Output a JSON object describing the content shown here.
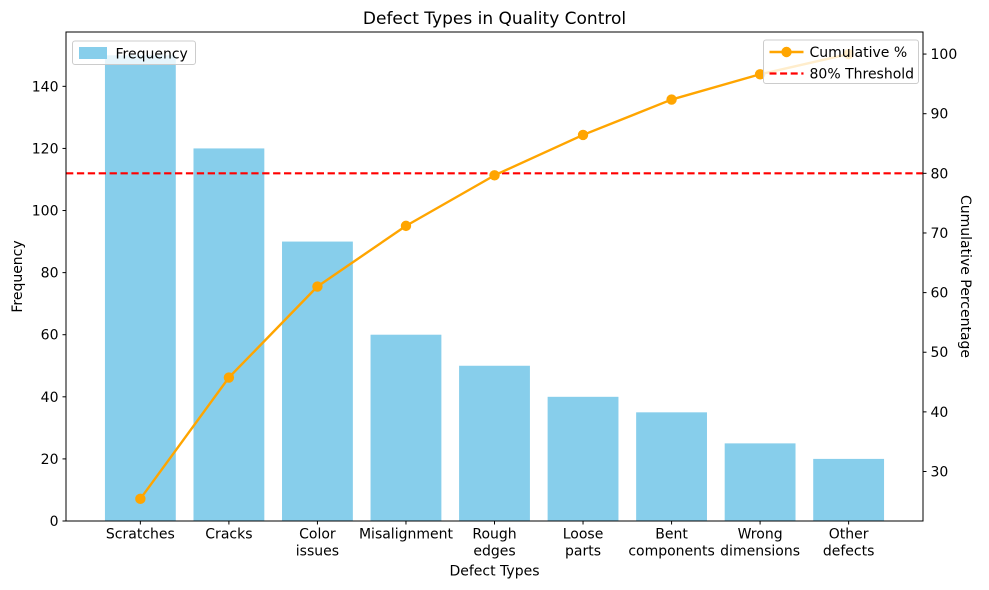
{
  "chart_data": {
    "type": "bar",
    "subtype": "pareto",
    "title": "Defect Types in Quality Control",
    "xlabel": "Defect Types",
    "ylabel": "Frequency",
    "ylabel_right": "Cumulative Percentage",
    "categories": [
      "Scratches",
      "Cracks",
      "Color\nissues",
      "Misalignment",
      "Rough\nedges",
      "Loose\nparts",
      "Bent\ncomponents",
      "Wrong\ndimensions",
      "Other\ndefects"
    ],
    "series": [
      {
        "name": "Frequency",
        "type": "bar",
        "axis": "left",
        "color": "#87CEEB",
        "values": [
          150,
          120,
          90,
          60,
          50,
          40,
          35,
          25,
          20
        ]
      },
      {
        "name": "Cumulative %",
        "type": "line",
        "axis": "right",
        "color": "#FFA500",
        "marker": "circle",
        "values": [
          25.42,
          45.76,
          61.02,
          71.19,
          79.66,
          86.44,
          92.37,
          96.61,
          100.0
        ]
      },
      {
        "name": "80% Threshold",
        "type": "hline",
        "axis": "right",
        "color": "#FF0000",
        "style": "dashed",
        "value": 80
      }
    ],
    "left_ylim": [
      0,
      157.5
    ],
    "right_ylim": [
      21.7,
      103.7
    ],
    "left_ticks": [
      0,
      20,
      40,
      60,
      80,
      100,
      120,
      140
    ],
    "right_ticks": [
      30,
      40,
      50,
      60,
      70,
      80,
      90,
      100
    ],
    "grid": false,
    "legends": [
      {
        "position": "upper left",
        "entries": [
          "Frequency"
        ]
      },
      {
        "position": "upper right",
        "entries": [
          "Cumulative %",
          "80% Threshold"
        ]
      }
    ],
    "legend_border_color": "#cccccc",
    "spine_color": "#000000"
  }
}
